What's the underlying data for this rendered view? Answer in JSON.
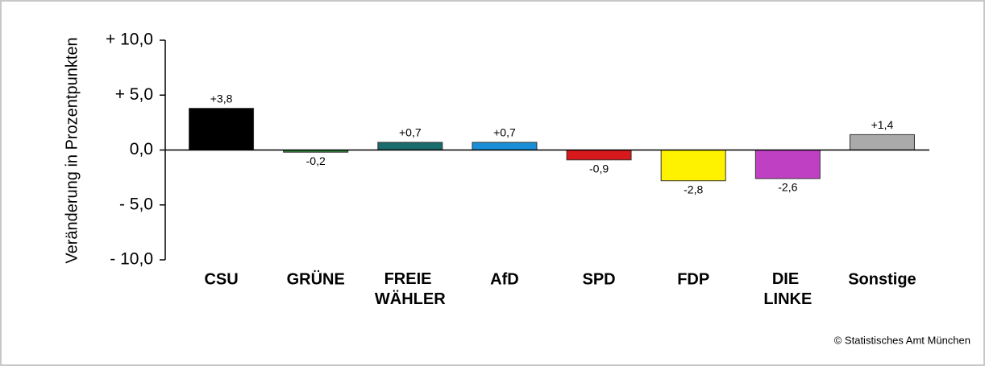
{
  "chart_data": {
    "type": "bar",
    "y_label": "Veränderung in Prozentpunkten",
    "source": "© Statistisches Amt München",
    "categories": [
      "CSU",
      "GRÜNE",
      "FREIE WÄHLER",
      "AfD",
      "SPD",
      "FDP",
      "DIE LINKE",
      "Sonstige"
    ],
    "values": [
      3.8,
      -0.2,
      0.7,
      0.7,
      -0.9,
      -2.8,
      -2.6,
      1.4
    ],
    "value_labels": [
      "+3,8",
      "-0,2",
      "+0,7",
      "+0,7",
      "-0,9",
      "-2,8",
      "-2,6",
      "+1,4"
    ],
    "colors": [
      "#000000",
      "#2e8b3a",
      "#1a6b6b",
      "#1a8fd8",
      "#d7191c",
      "#fff200",
      "#c040c4",
      "#aaaaaa"
    ],
    "ylim": [
      -10,
      10
    ],
    "yticks": [
      {
        "value": -10,
        "label": "- 10,0"
      },
      {
        "value": -5,
        "label": "- 5,0"
      },
      {
        "value": 0,
        "label": "0,0"
      },
      {
        "value": 5,
        "label": "+ 5,0"
      },
      {
        "value": 10,
        "label": "+ 10,0"
      }
    ]
  }
}
